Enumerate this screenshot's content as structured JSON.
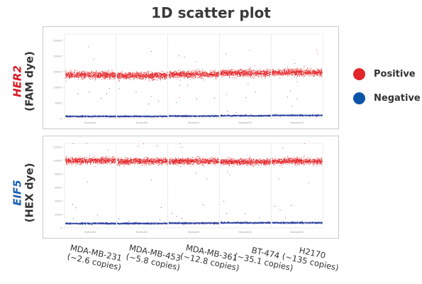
{
  "title": "1D scatter plot",
  "legend": [
    {
      "label": "Positive",
      "color": "#e3262a"
    },
    {
      "label": "Negative",
      "color": "#0c55a6"
    }
  ],
  "sample_labels": [
    {
      "name": "MDA-MB-231",
      "copies": "(~2.6 copies)"
    },
    {
      "name": "MDA-MB-453",
      "copies": "(~5.8 copies)"
    },
    {
      "name": "MDA-MB-361",
      "copies": "(~12.8 copies)"
    },
    {
      "name": "BT-474",
      "copies": "(~35.1 copies)"
    },
    {
      "name": "H2170",
      "copies": "(~135 copies)"
    }
  ],
  "panels": [
    {
      "gene": "HER2",
      "dye": "(FAM dye)"
    },
    {
      "gene": "EIF5",
      "dye": "(HEX dye)"
    }
  ],
  "chart_data": [
    {
      "type": "scatter",
      "title": "",
      "ylabel": "",
      "ylim": [
        0,
        27000
      ],
      "yticks": [
        0,
        5000,
        10000,
        15000,
        20000,
        25000
      ],
      "well_labels": [
        "Sample1",
        "Sample2",
        "Sample3",
        "Sample10",
        "Sample20"
      ],
      "series": [
        {
          "name": "Positive",
          "color": "#e3262a",
          "band_center": [
            14000,
            13800,
            14200,
            14600,
            14800
          ],
          "band_spread": 1200
        },
        {
          "name": "Negative",
          "color": "#2b3f9e",
          "band_center": [
            800,
            800,
            900,
            1000,
            1100
          ],
          "band_spread": 250
        }
      ]
    },
    {
      "type": "scatter",
      "title": "",
      "ylabel": "",
      "ylim": [
        0,
        12500
      ],
      "yticks": [
        0,
        2000,
        4000,
        6000,
        8000,
        10000,
        12000
      ],
      "well_labels": [
        "Sample1",
        "Sample2",
        "Sample3",
        "Sample10",
        "Sample20"
      ],
      "series": [
        {
          "name": "Positive",
          "color": "#e3262a",
          "band_center": [
            10000,
            9900,
            9900,
            9800,
            9900
          ],
          "band_spread": 500
        },
        {
          "name": "Negative",
          "color": "#2b3f9e",
          "band_center": [
            700,
            700,
            750,
            800,
            800
          ],
          "band_spread": 130
        }
      ]
    }
  ]
}
